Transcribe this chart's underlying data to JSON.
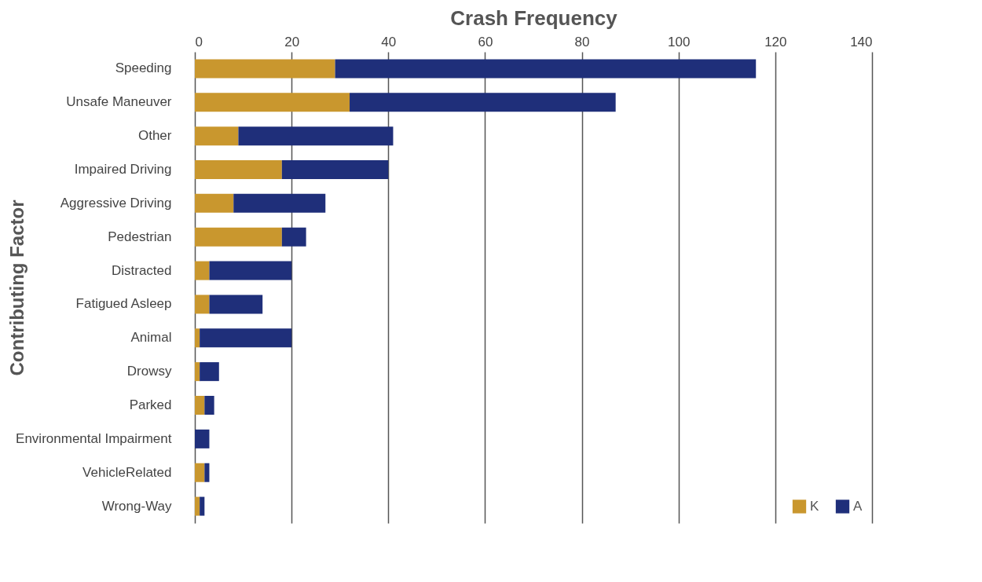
{
  "chart_data": {
    "type": "bar",
    "orientation": "horizontal",
    "stacked": true,
    "xlabel": "Crash Frequency",
    "ylabel": "Contributing Factor",
    "categories": [
      "Speeding",
      "Unsafe Maneuver",
      "Other",
      "Impaired Driving",
      "Aggressive Driving",
      "Pedestrian",
      "Distracted",
      "Fatigued Asleep",
      "Animal",
      "Drowsy",
      "Parked",
      "Environmental Impairment",
      "VehicleRelated",
      "Wrong-Way"
    ],
    "series": [
      {
        "name": "K",
        "color": "#c9972e",
        "values": [
          29,
          32,
          9,
          18,
          8,
          18,
          3,
          3,
          1,
          1,
          2,
          0,
          2,
          1
        ]
      },
      {
        "name": "A",
        "color": "#1f2f7a",
        "values": [
          87,
          55,
          32,
          22,
          19,
          5,
          17,
          11,
          19,
          4,
          2,
          3,
          1,
          1
        ]
      }
    ],
    "xlim": [
      0,
      140
    ],
    "xticks": [
      0,
      20,
      40,
      60,
      80,
      100,
      120,
      140
    ],
    "grid": "x",
    "legend": "bottom right"
  }
}
